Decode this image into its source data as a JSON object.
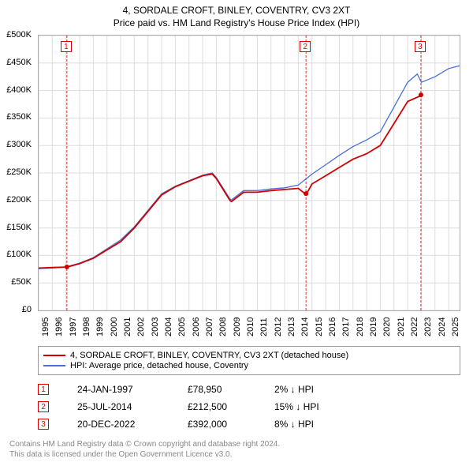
{
  "title": {
    "line1": "4, SORDALE CROFT, BINLEY, COVENTRY, CV3 2XT",
    "line2": "Price paid vs. HM Land Registry's House Price Index (HPI)"
  },
  "chart": {
    "type": "line",
    "background_color": "#ffffff",
    "grid_color": "#dddddd",
    "border_color": "#aaaaaa",
    "xlim": [
      1995,
      2025.8
    ],
    "ylim": [
      0,
      500000
    ],
    "ytick_step": 50000,
    "ytick_prefix": "£",
    "ytick_suffix": "K",
    "xticks": [
      1995,
      1996,
      1997,
      1998,
      1999,
      2000,
      2001,
      2002,
      2003,
      2004,
      2005,
      2006,
      2007,
      2008,
      2009,
      2010,
      2011,
      2012,
      2013,
      2014,
      2015,
      2016,
      2017,
      2018,
      2019,
      2020,
      2021,
      2022,
      2023,
      2024,
      2025
    ],
    "series": [
      {
        "name": "4, SORDALE CROFT, BINLEY, COVENTRY, CV3 2XT (detached house)",
        "color": "#d00000",
        "line_width": 1.8,
        "x": [
          1995,
          1996,
          1997,
          1997.1,
          1998,
          1999,
          2000,
          2001,
          2002,
          2003,
          2004,
          2005,
          2006,
          2007,
          2007.7,
          2008,
          2009,
          2009.1,
          2010,
          2011,
          2012,
          2013,
          2014,
          2014.6,
          2014.61,
          2015,
          2016,
          2017,
          2018,
          2019,
          2020,
          2021,
          2022,
          2022.9,
          2022.97
        ],
        "y": [
          77000,
          78000,
          78950,
          78950,
          85000,
          95000,
          110000,
          125000,
          150000,
          180000,
          210000,
          225000,
          235000,
          245000,
          248000,
          240000,
          200000,
          198000,
          215000,
          215000,
          218000,
          220000,
          222000,
          210000,
          212500,
          230000,
          245000,
          260000,
          275000,
          285000,
          300000,
          340000,
          380000,
          390000,
          392000
        ]
      },
      {
        "name": "HPI: Average price, detached house, Coventry",
        "color": "#4a6fd8",
        "line_width": 1.3,
        "x": [
          1995,
          1996,
          1997,
          1998,
          1999,
          2000,
          2001,
          2002,
          2003,
          2004,
          2005,
          2006,
          2007,
          2007.7,
          2008,
          2009,
          2009.1,
          2010,
          2011,
          2012,
          2013,
          2014,
          2015,
          2016,
          2017,
          2018,
          2019,
          2020,
          2021,
          2022,
          2022.7,
          2023,
          2024,
          2025,
          2025.8
        ],
        "y": [
          76000,
          77000,
          79000,
          86000,
          96000,
          112000,
          128000,
          152000,
          182000,
          212000,
          226000,
          236000,
          246000,
          250000,
          242000,
          203000,
          201000,
          218000,
          218000,
          221000,
          223000,
          228000,
          248000,
          265000,
          282000,
          298000,
          310000,
          325000,
          370000,
          415000,
          430000,
          415000,
          425000,
          440000,
          445000
        ]
      }
    ],
    "sale_markers": [
      {
        "n": "1",
        "x": 1997.07,
        "y": 78950
      },
      {
        "n": "2",
        "x": 2014.56,
        "y": 212500
      },
      {
        "n": "3",
        "x": 2022.97,
        "y": 392000
      }
    ],
    "top_markers": [
      {
        "n": "1",
        "x": 1997.07
      },
      {
        "n": "2",
        "x": 2014.56
      },
      {
        "n": "3",
        "x": 2022.97
      }
    ],
    "marker_vline_color": "#d00000",
    "marker_vline_dash": "3,2",
    "marker_dot_radius": 3
  },
  "legend": {
    "items": [
      {
        "color": "#d00000",
        "label": "4, SORDALE CROFT, BINLEY, COVENTRY, CV3 2XT (detached house)"
      },
      {
        "color": "#4a6fd8",
        "label": "HPI: Average price, detached house, Coventry"
      }
    ]
  },
  "sales": [
    {
      "n": "1",
      "date": "24-JAN-1997",
      "price": "£78,950",
      "diff": "2% ↓ HPI"
    },
    {
      "n": "2",
      "date": "25-JUL-2014",
      "price": "£212,500",
      "diff": "15% ↓ HPI"
    },
    {
      "n": "3",
      "date": "20-DEC-2022",
      "price": "£392,000",
      "diff": "8% ↓ HPI"
    }
  ],
  "footer": {
    "line1": "Contains HM Land Registry data © Crown copyright and database right 2024.",
    "line2": "This data is licensed under the Open Government Licence v3.0."
  }
}
